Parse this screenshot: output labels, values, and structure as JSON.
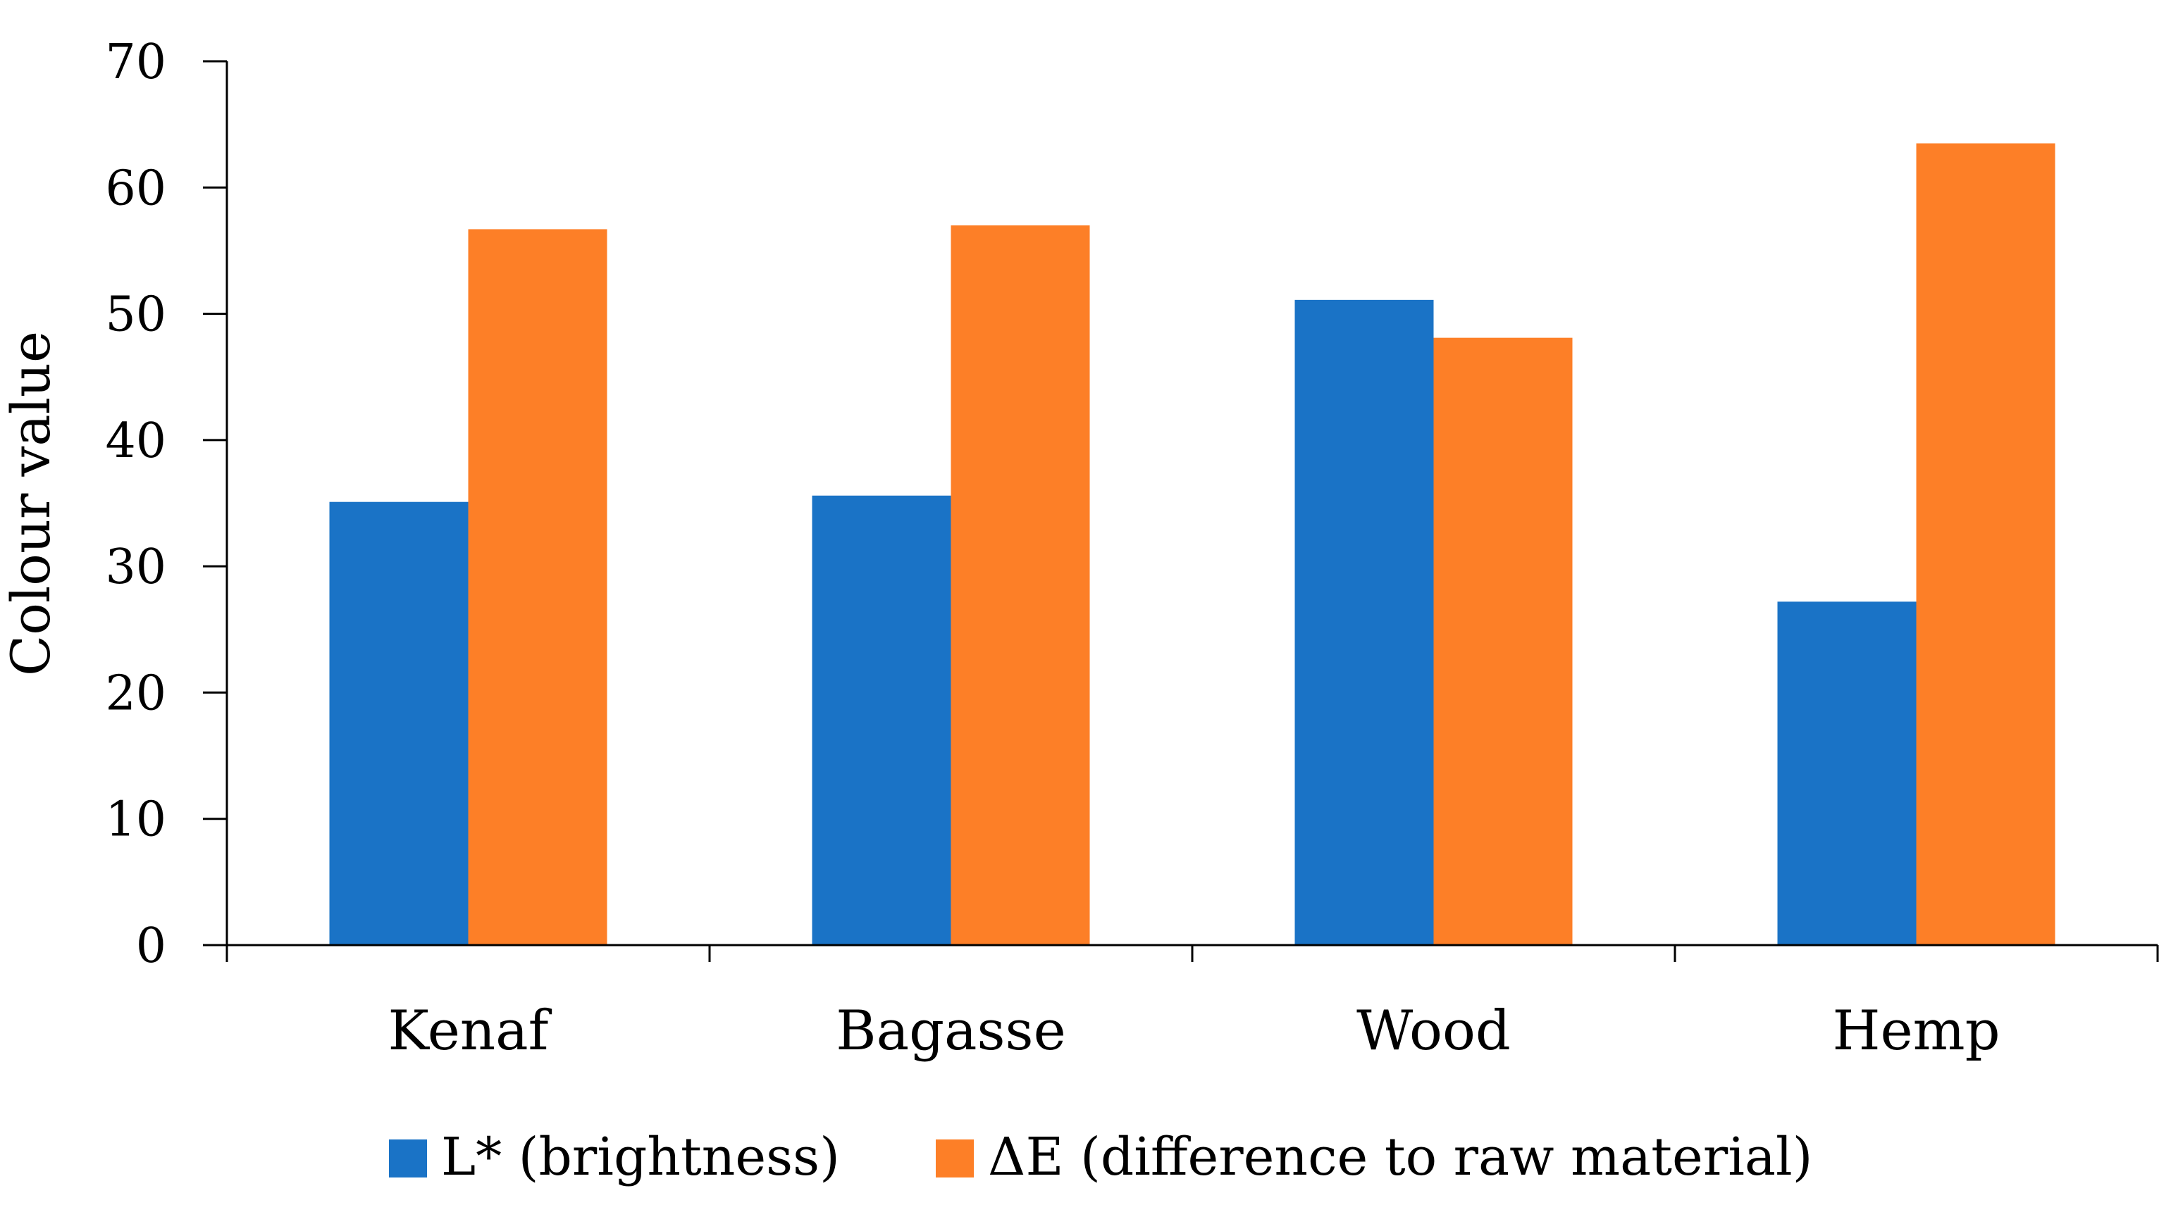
{
  "chart_data": {
    "type": "bar",
    "title": "",
    "xlabel": "",
    "ylabel": "Colour value",
    "ylim": [
      0,
      70
    ],
    "yticks": [
      0,
      10,
      20,
      30,
      40,
      50,
      60,
      70
    ],
    "grid": false,
    "legend_position": "bottom",
    "categories": [
      "Kenaf",
      "Bagasse",
      "Wood",
      "Hemp"
    ],
    "series": [
      {
        "name": "L* (brightness)",
        "color": "#1a73c6",
        "values": [
          35.1,
          35.6,
          51.1,
          27.2
        ]
      },
      {
        "name": "ΔE (difference to raw material)",
        "color": "#fd7f27",
        "values": [
          56.7,
          57.0,
          48.1,
          63.5
        ]
      }
    ]
  }
}
